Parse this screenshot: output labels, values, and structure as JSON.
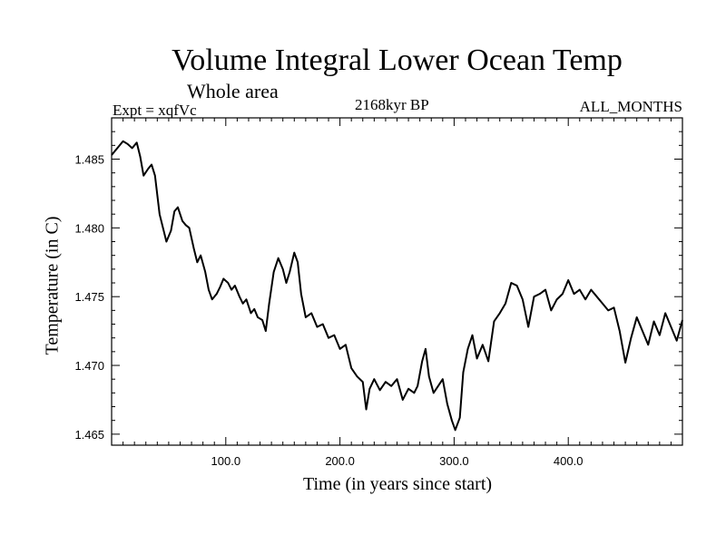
{
  "chart_data": {
    "type": "line",
    "title": "Volume Integral Lower Ocean Temp",
    "subtitle": "Whole area",
    "experiment": "Expt = xqfVc",
    "period": "2168kyr BP",
    "months": "ALL_MONTHS",
    "xlabel": "Time (in years since start)",
    "ylabel": "Temperature (in C)",
    "xlim": [
      0,
      500
    ],
    "ylim": [
      1.4642,
      1.488
    ],
    "xticks": [
      {
        "value": 100,
        "label": "100.0"
      },
      {
        "value": 200,
        "label": "200.0"
      },
      {
        "value": 300,
        "label": "300.0"
      },
      {
        "value": 400,
        "label": "400.0"
      }
    ],
    "yticks": [
      {
        "value": 1.465,
        "label": "1.465"
      },
      {
        "value": 1.47,
        "label": "1.470"
      },
      {
        "value": 1.475,
        "label": "1.475"
      },
      {
        "value": 1.48,
        "label": "1.480"
      },
      {
        "value": 1.485,
        "label": "1.485"
      }
    ],
    "series": [
      {
        "name": "Volume integral lower ocean temp",
        "x": [
          0,
          5,
          10,
          14,
          18,
          22,
          25,
          28,
          32,
          35,
          38,
          42,
          45,
          48,
          52,
          55,
          58,
          62,
          65,
          68,
          72,
          75,
          78,
          82,
          85,
          88,
          92,
          95,
          98,
          102,
          105,
          108,
          112,
          115,
          118,
          122,
          125,
          128,
          132,
          135,
          138,
          142,
          146,
          150,
          153,
          156,
          160,
          163,
          166,
          170,
          175,
          180,
          185,
          190,
          195,
          200,
          205,
          210,
          215,
          220,
          223,
          226,
          230,
          235,
          240,
          245,
          250,
          255,
          260,
          265,
          268,
          272,
          275,
          278,
          282,
          286,
          290,
          294,
          298,
          301,
          305,
          308,
          312,
          316,
          320,
          325,
          330,
          335,
          340,
          345,
          350,
          355,
          360,
          365,
          370,
          375,
          380,
          385,
          390,
          395,
          400,
          405,
          410,
          415,
          420,
          425,
          430,
          435,
          440,
          445,
          450,
          455,
          460,
          465,
          470,
          475,
          480,
          485,
          490,
          495,
          500
        ],
        "y": [
          1.4853,
          1.4858,
          1.4863,
          1.4861,
          1.4858,
          1.4862,
          1.4852,
          1.4838,
          1.4843,
          1.4846,
          1.4838,
          1.481,
          1.48,
          1.479,
          1.4798,
          1.4812,
          1.4815,
          1.4805,
          1.4802,
          1.48,
          1.4785,
          1.4775,
          1.478,
          1.4768,
          1.4755,
          1.4748,
          1.4752,
          1.4757,
          1.4763,
          1.476,
          1.4755,
          1.4758,
          1.475,
          1.4745,
          1.4748,
          1.4738,
          1.4741,
          1.4735,
          1.4733,
          1.4725,
          1.4745,
          1.4768,
          1.4778,
          1.477,
          1.476,
          1.4768,
          1.4782,
          1.4775,
          1.4752,
          1.4735,
          1.4738,
          1.4728,
          1.473,
          1.472,
          1.4722,
          1.4712,
          1.4715,
          1.4698,
          1.4692,
          1.4688,
          1.4668,
          1.4683,
          1.469,
          1.4682,
          1.4688,
          1.4685,
          1.469,
          1.4675,
          1.4683,
          1.468,
          1.4685,
          1.4703,
          1.4712,
          1.4692,
          1.468,
          1.4685,
          1.469,
          1.4672,
          1.466,
          1.4653,
          1.4662,
          1.4695,
          1.4712,
          1.4722,
          1.4705,
          1.4715,
          1.4703,
          1.4732,
          1.4738,
          1.4745,
          1.476,
          1.4758,
          1.4748,
          1.4728,
          1.475,
          1.4752,
          1.4755,
          1.474,
          1.4748,
          1.4752,
          1.4762,
          1.4752,
          1.4755,
          1.4748,
          1.4755,
          1.475,
          1.4745,
          1.474,
          1.4742,
          1.4725,
          1.4702,
          1.472,
          1.4735,
          1.4725,
          1.4715,
          1.4732,
          1.4722,
          1.4738,
          1.4728,
          1.4718,
          1.4733
        ]
      }
    ]
  }
}
